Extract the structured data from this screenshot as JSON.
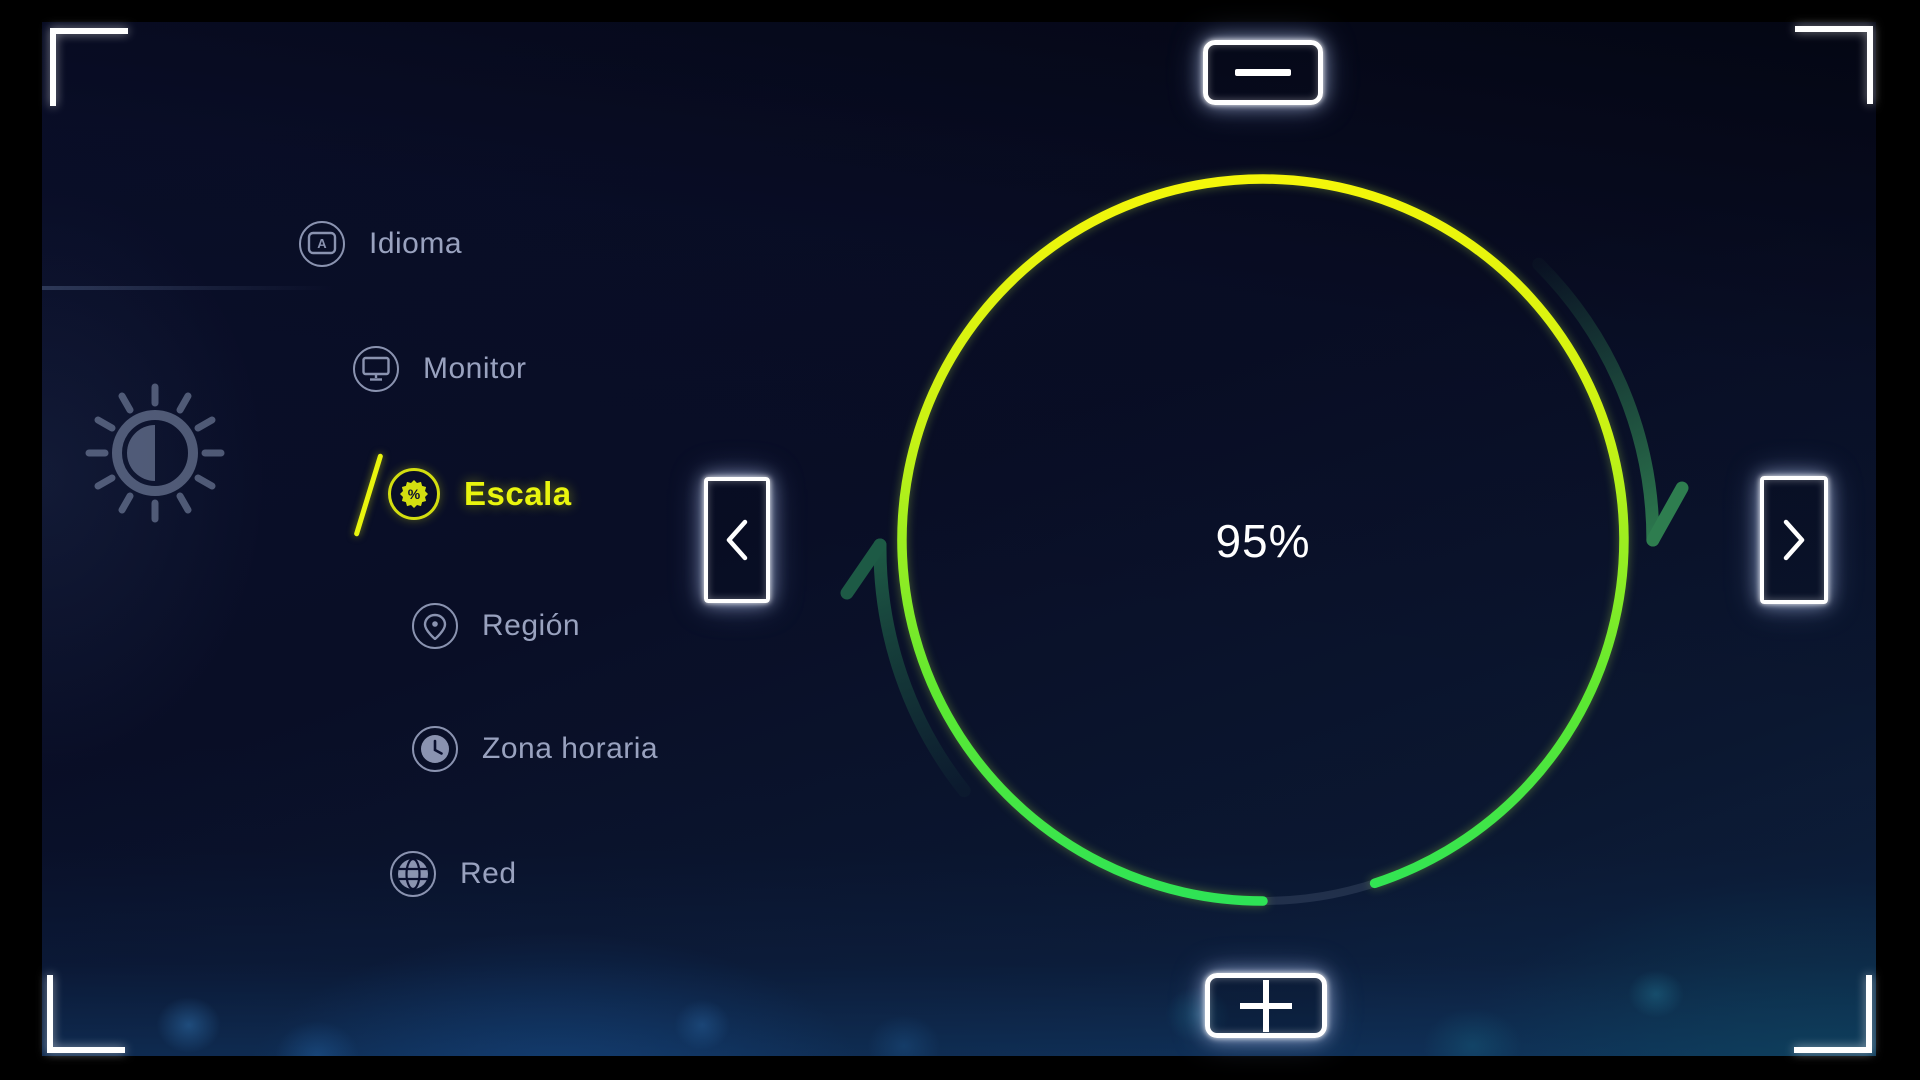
{
  "menu": {
    "items": [
      {
        "label": "Idioma",
        "icon": "language-icon",
        "selected": false
      },
      {
        "label": "Monitor",
        "icon": "monitor-icon",
        "selected": false
      },
      {
        "label": "Escala",
        "icon": "scale-percent-icon",
        "selected": true
      },
      {
        "label": "Región",
        "icon": "region-pin-icon",
        "selected": false
      },
      {
        "label": "Zona horaria",
        "icon": "timezone-clock-icon",
        "selected": false
      },
      {
        "label": "Red",
        "icon": "network-globe-icon",
        "selected": false
      }
    ]
  },
  "gauge": {
    "value_label": "95%",
    "percent": 95,
    "gap_center_deg": 81,
    "ring_color_top": "#f4f60a",
    "ring_color_mid": "#aef21c",
    "ring_color_bottom": "#2ee356",
    "track_color": "#8fa2b8",
    "rotate_arrow_color": "#2d7a4e"
  },
  "controls": {
    "decrease_label": "−",
    "increase_label": "+",
    "previous_label": "<",
    "next_label": ">"
  },
  "colors": {
    "accent_yellow": "#e9f50e",
    "menu_muted": "#99a2bf",
    "value_text": "#ffffff"
  }
}
